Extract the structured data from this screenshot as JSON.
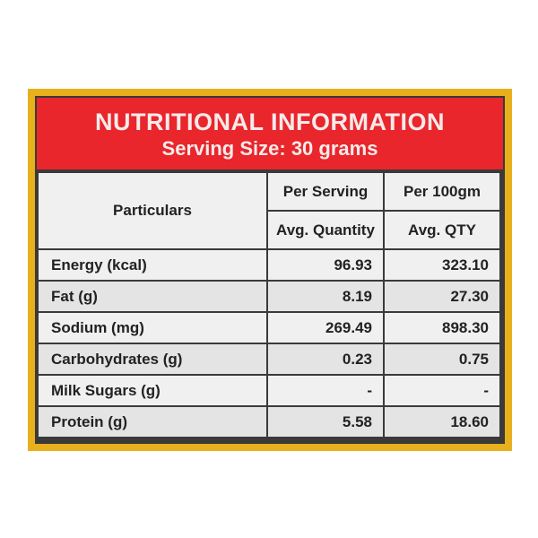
{
  "header": {
    "title": "NUTRITIONAL INFORMATION",
    "serving": "Serving Size: 30 grams"
  },
  "table": {
    "particulars_label": "Particulars",
    "per_serving_label": "Per Serving",
    "per_100_label": "Per 100gm",
    "avg_quantity_label": "Avg. Quantity",
    "avg_qty_label": "Avg. QTY",
    "rows": [
      {
        "name": "Energy (kcal)",
        "serving": "96.93",
        "per100": "323.10"
      },
      {
        "name": "Fat (g)",
        "serving": "8.19",
        "per100": "27.30"
      },
      {
        "name": "Sodium (mg)",
        "serving": "269.49",
        "per100": "898.30"
      },
      {
        "name": "Carbohydrates (g)",
        "serving": "0.23",
        "per100": "0.75"
      },
      {
        "name": "Milk Sugars (g)",
        "serving": "-",
        "per100": "-"
      },
      {
        "name": "Protein (g)",
        "serving": "5.58",
        "per100": "18.60"
      }
    ]
  },
  "colors": {
    "frame": "#e8b01c",
    "header_bg": "#e8262c",
    "cell_bg": "#f0f0f0"
  }
}
